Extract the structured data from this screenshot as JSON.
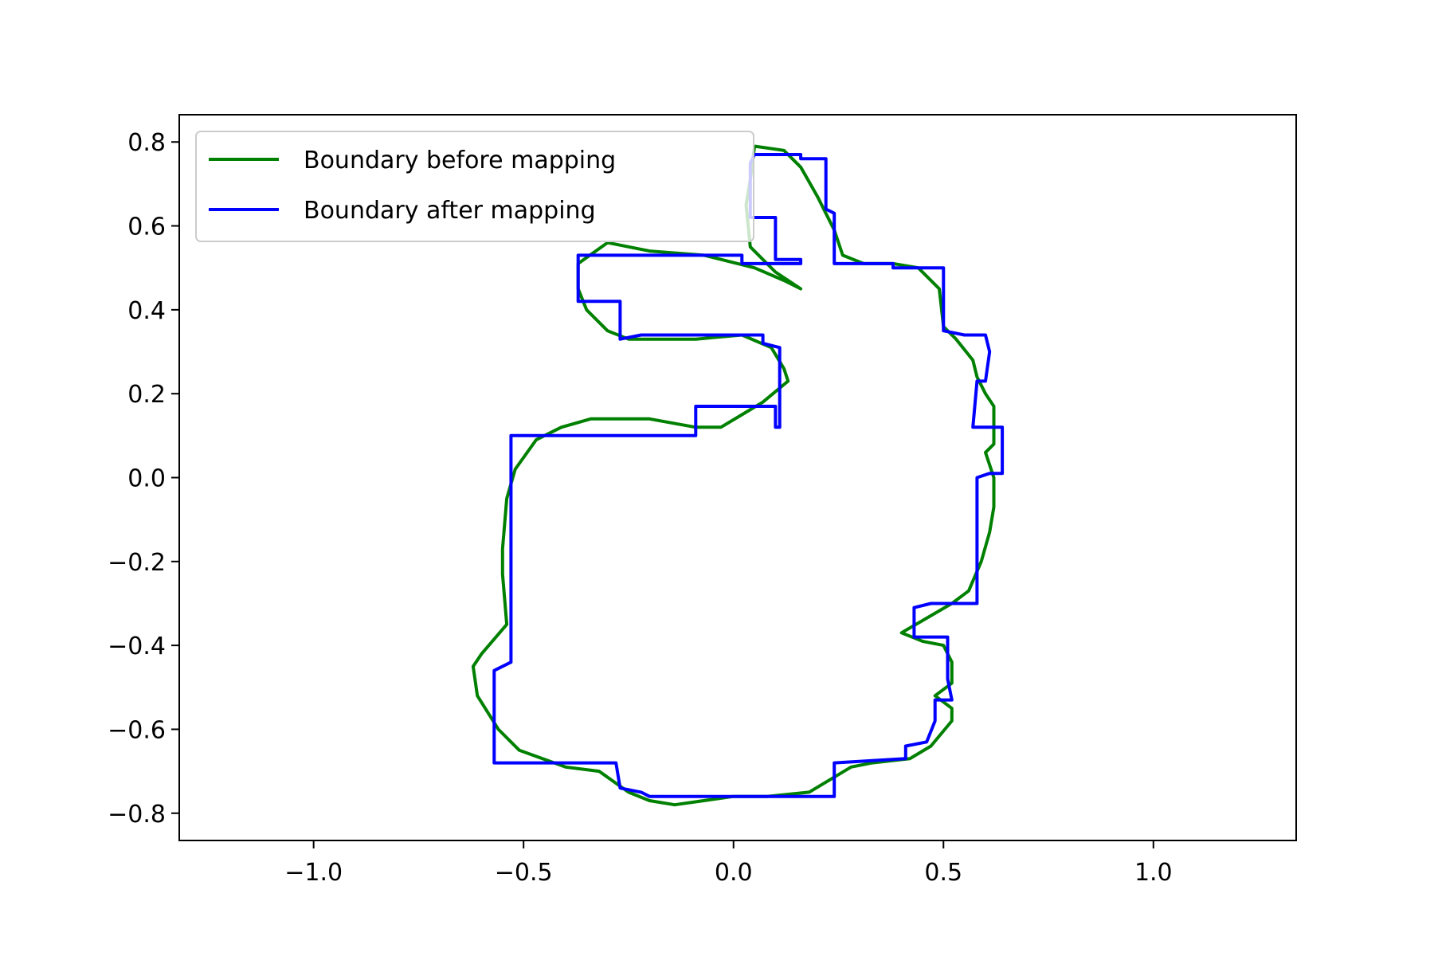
{
  "chart_data": {
    "type": "line",
    "xlim": [
      -1.32,
      1.34
    ],
    "ylim": [
      -0.865,
      0.865
    ],
    "xticks": [
      -1.0,
      -0.5,
      0.0,
      0.5,
      1.0
    ],
    "xtick_labels": [
      "−1.0",
      "−0.5",
      "0.0",
      "0.5",
      "1.0"
    ],
    "yticks": [
      0.8,
      0.6,
      0.4,
      0.2,
      0.0,
      -0.2,
      -0.4,
      -0.6,
      -0.8
    ],
    "ytick_labels": [
      "0.8",
      "0.6",
      "0.4",
      "0.2",
      "0.0",
      "−0.2",
      "−0.4",
      "−0.6",
      "−0.8"
    ],
    "grid": false,
    "legend_position": "top-left",
    "series": [
      {
        "name": "Boundary before mapping",
        "color": "#008000",
        "x": [
          0.05,
          0.12,
          0.16,
          0.2,
          0.24,
          0.26,
          0.31,
          0.38,
          0.44,
          0.49,
          0.5,
          0.53,
          0.57,
          0.58,
          0.6,
          0.62,
          0.62,
          0.6,
          0.62,
          0.62,
          0.61,
          0.59,
          0.56,
          0.52,
          0.4,
          0.45,
          0.5,
          0.52,
          0.52,
          0.48,
          0.52,
          0.52,
          0.47,
          0.42,
          0.33,
          0.28,
          0.18,
          0.08,
          0.0,
          -0.14,
          -0.2,
          -0.25,
          -0.32,
          -0.4,
          -0.51,
          -0.56,
          -0.61,
          -0.62,
          -0.6,
          -0.54,
          -0.55,
          -0.55,
          -0.54,
          -0.52,
          -0.47,
          -0.41,
          -0.34,
          -0.2,
          -0.09,
          -0.03,
          0.02,
          0.07,
          0.13,
          0.12,
          0.09,
          0.02,
          -0.09,
          -0.25,
          -0.3,
          -0.35,
          -0.37,
          -0.37,
          -0.3,
          -0.2,
          -0.07,
          0.05,
          0.12,
          0.16,
          0.1,
          0.04,
          0.03,
          0.04,
          0.05
        ],
        "y": [
          0.79,
          0.78,
          0.74,
          0.67,
          0.59,
          0.53,
          0.51,
          0.51,
          0.5,
          0.45,
          0.36,
          0.33,
          0.28,
          0.24,
          0.2,
          0.17,
          0.08,
          0.06,
          0.0,
          -0.07,
          -0.13,
          -0.2,
          -0.27,
          -0.3,
          -0.37,
          -0.39,
          -0.4,
          -0.44,
          -0.49,
          -0.52,
          -0.55,
          -0.58,
          -0.64,
          -0.67,
          -0.68,
          -0.69,
          -0.75,
          -0.76,
          -0.76,
          -0.78,
          -0.77,
          -0.75,
          -0.7,
          -0.69,
          -0.65,
          -0.6,
          -0.52,
          -0.45,
          -0.42,
          -0.35,
          -0.23,
          -0.17,
          -0.05,
          0.02,
          0.09,
          0.12,
          0.14,
          0.14,
          0.12,
          0.12,
          0.15,
          0.18,
          0.23,
          0.26,
          0.31,
          0.34,
          0.33,
          0.33,
          0.35,
          0.4,
          0.45,
          0.51,
          0.56,
          0.54,
          0.53,
          0.5,
          0.47,
          0.45,
          0.49,
          0.55,
          0.65,
          0.71,
          0.79
        ]
      },
      {
        "name": "Boundary after mapping",
        "color": "#0000ff",
        "x": [
          0.05,
          0.16,
          0.16,
          0.22,
          0.22,
          0.24,
          0.24,
          0.36,
          0.38,
          0.38,
          0.5,
          0.5,
          0.55,
          0.57,
          0.6,
          0.61,
          0.6,
          0.58,
          0.57,
          0.57,
          0.62,
          0.64,
          0.64,
          0.63,
          0.61,
          0.58,
          0.58,
          0.5,
          0.47,
          0.43,
          0.43,
          0.51,
          0.51,
          0.52,
          0.48,
          0.48,
          0.46,
          0.41,
          0.41,
          0.24,
          0.24,
          0.05,
          0.05,
          -0.1,
          -0.2,
          -0.22,
          -0.27,
          -0.28,
          -0.42,
          -0.57,
          -0.57,
          -0.57,
          -0.57,
          -0.53,
          -0.53,
          -0.53,
          -0.53,
          -0.53,
          -0.53,
          -0.53,
          -0.53,
          -0.53,
          -0.53,
          -0.1,
          -0.09,
          -0.09,
          0.01,
          0.05,
          0.1,
          0.1,
          0.1,
          0.11,
          0.11,
          0.07,
          0.07,
          -0.22,
          -0.27,
          -0.27,
          -0.32,
          -0.37,
          -0.37,
          -0.37,
          -0.05,
          0.02,
          0.02,
          0.09,
          0.11,
          0.16,
          0.16,
          0.1,
          0.1,
          0.04,
          0.04,
          0.05
        ],
        "y": [
          0.77,
          0.77,
          0.76,
          0.76,
          0.64,
          0.63,
          0.51,
          0.51,
          0.51,
          0.5,
          0.5,
          0.35,
          0.34,
          0.34,
          0.34,
          0.3,
          0.23,
          0.23,
          0.12,
          0.12,
          0.12,
          0.12,
          0.01,
          0.01,
          0.01,
          0.0,
          -0.3,
          -0.3,
          -0.3,
          -0.31,
          -0.38,
          -0.38,
          -0.48,
          -0.53,
          -0.53,
          -0.58,
          -0.63,
          -0.64,
          -0.67,
          -0.68,
          -0.76,
          -0.76,
          -0.76,
          -0.76,
          -0.76,
          -0.75,
          -0.74,
          -0.68,
          -0.68,
          -0.68,
          -0.6,
          -0.5,
          -0.46,
          -0.44,
          -0.41,
          -0.36,
          -0.34,
          -0.22,
          -0.16,
          -0.05,
          0.02,
          0.08,
          0.1,
          0.1,
          0.1,
          0.17,
          0.17,
          0.17,
          0.17,
          0.16,
          0.12,
          0.12,
          0.31,
          0.32,
          0.34,
          0.34,
          0.33,
          0.42,
          0.42,
          0.42,
          0.47,
          0.53,
          0.53,
          0.53,
          0.51,
          0.51,
          0.51,
          0.51,
          0.52,
          0.52,
          0.62,
          0.62,
          0.75,
          0.77
        ]
      }
    ]
  }
}
